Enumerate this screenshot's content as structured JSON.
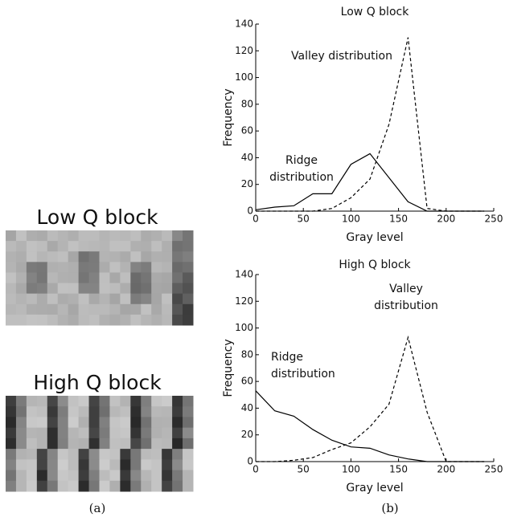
{
  "panel_a": {
    "label": "(a)",
    "images": [
      {
        "title": "Low Q block"
      },
      {
        "title": "High Q block"
      }
    ]
  },
  "panel_b": {
    "label": "(b)"
  },
  "chart_data": [
    {
      "type": "line",
      "title": "Low Q block",
      "xlabel": "Gray level",
      "ylabel": "Frequency",
      "xlim": [
        0,
        250
      ],
      "xticks": [
        0,
        50,
        100,
        150,
        200,
        250
      ],
      "ylim": [
        0,
        140
      ],
      "yticks": [
        0,
        20,
        40,
        60,
        80,
        100,
        120,
        140
      ],
      "x": [
        0,
        20,
        40,
        60,
        80,
        100,
        120,
        140,
        160,
        180,
        200,
        220,
        240
      ],
      "series": [
        {
          "color": "#000000",
          "dash": "solid",
          "values": [
            1,
            3,
            4,
            13,
            13,
            35,
            43,
            25,
            7,
            0,
            0,
            0,
            0
          ]
        },
        {
          "color": "#000000",
          "dash": "dashed",
          "values": [
            0,
            0,
            0,
            0,
            2,
            10,
            24,
            65,
            130,
            2,
            0,
            0,
            0
          ]
        }
      ],
      "annotations": [
        {
          "lines": [
            "Valley distribution"
          ]
        },
        {
          "lines": [
            "Ridge",
            "distribution"
          ]
        }
      ]
    },
    {
      "type": "line",
      "title": "High Q block",
      "xlabel": "Gray level",
      "ylabel": "Frequency",
      "xlim": [
        0,
        250
      ],
      "xticks": [
        0,
        50,
        100,
        150,
        200,
        250
      ],
      "ylim": [
        0,
        140
      ],
      "yticks": [
        0,
        20,
        40,
        60,
        80,
        100,
        120,
        140
      ],
      "x": [
        0,
        20,
        40,
        60,
        80,
        100,
        120,
        140,
        160,
        180,
        200,
        220,
        240
      ],
      "series": [
        {
          "color": "#000000",
          "dash": "solid",
          "values": [
            53,
            38,
            34,
            24,
            16,
            11,
            10,
            5,
            2,
            0,
            0,
            0,
            0
          ]
        },
        {
          "color": "#000000",
          "dash": "dashed",
          "values": [
            0,
            0,
            1,
            3,
            9,
            14,
            26,
            43,
            93,
            37,
            0,
            0,
            0
          ]
        }
      ],
      "annotations": [
        {
          "lines": [
            "Valley",
            "distribution"
          ]
        },
        {
          "lines": [
            "Ridge",
            "distribution"
          ]
        }
      ]
    }
  ]
}
